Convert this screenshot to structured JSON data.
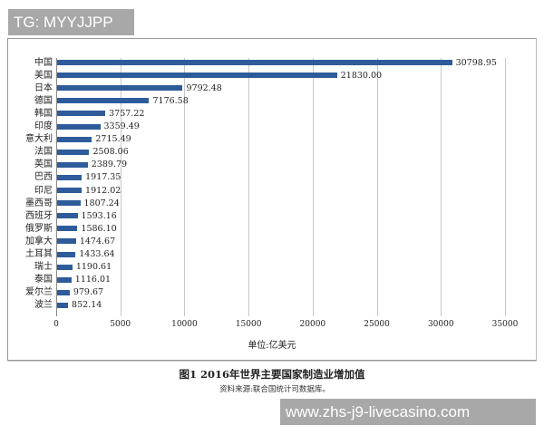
{
  "watermark_top": "TG: MYYJJPP",
  "watermark_bottom": "www.zhs-j9-livecasino.com",
  "chart_data": {
    "type": "bar",
    "orientation": "horizontal",
    "title": "图1 2016年世界主要国家制造业增加值",
    "source": "资料来源:联合国统计司数据库。",
    "xlabel": "单位:亿美元",
    "ylabel": "",
    "xlim": [
      0,
      35000
    ],
    "xticks": [
      "0",
      "5000",
      "10000",
      "15000",
      "20000",
      "25000",
      "30000",
      "35000"
    ],
    "grid": true,
    "legend": null,
    "bar_color": "#2e5c9a",
    "categories": [
      "中国",
      "美国",
      "日本",
      "德国",
      "韩国",
      "印度",
      "意大利",
      "法国",
      "英国",
      "巴西",
      "印尼",
      "墨西哥",
      "西班牙",
      "俄罗斯",
      "加拿大",
      "土耳其",
      "瑞士",
      "泰国",
      "爱尔兰",
      "波兰"
    ],
    "values": [
      30798.95,
      21830.0,
      9792.48,
      7176.58,
      3757.22,
      3359.49,
      2715.49,
      2508.06,
      2389.79,
      1917.35,
      1912.02,
      1807.24,
      1593.16,
      1586.1,
      1474.67,
      1433.64,
      1190.61,
      1116.01,
      979.67,
      852.14
    ],
    "value_labels": [
      "30798.95",
      "21830.00",
      "9792.48",
      "7176.58",
      "3757.22",
      "3359.49",
      "2715.49",
      "2508.06",
      "2389.79",
      "1917.35",
      "1912.02",
      "1807.24",
      "1593.16",
      "1586.10",
      "1474.67",
      "1433.64",
      "1190.61",
      "1116.01",
      "979.67",
      "852.14"
    ]
  }
}
